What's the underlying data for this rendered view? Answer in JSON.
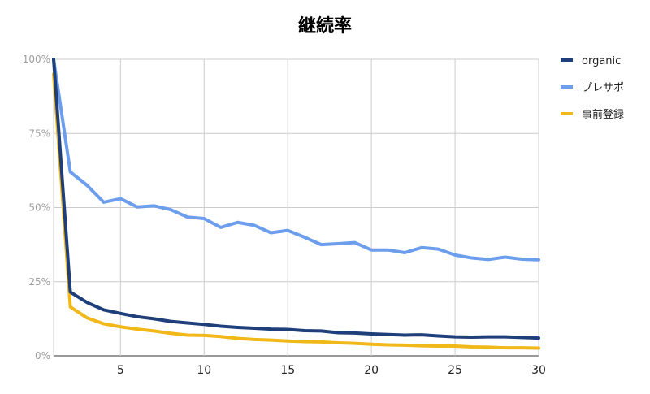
{
  "chart_data": {
    "type": "line",
    "title": "継続率",
    "xlabel": "",
    "ylabel": "",
    "xlim": [
      1,
      30
    ],
    "ylim": [
      0,
      100
    ],
    "x_ticks": [
      "5",
      "10",
      "15",
      "20",
      "25",
      "30"
    ],
    "y_ticks": [
      "0%",
      "25%",
      "50%",
      "75%",
      "100%"
    ],
    "grid": true,
    "legend_position": "right",
    "x": [
      1,
      2,
      3,
      4,
      5,
      6,
      7,
      8,
      9,
      10,
      11,
      12,
      13,
      14,
      15,
      16,
      17,
      18,
      19,
      20,
      21,
      22,
      23,
      24,
      25,
      26,
      27,
      28,
      29,
      30
    ],
    "series": [
      {
        "name": "organic",
        "color": "#1f3f7a",
        "values": [
          100,
          21.5,
          18,
          15.5,
          14.3,
          13.2,
          12.5,
          11.6,
          11.1,
          10.6,
          10,
          9.6,
          9.3,
          9,
          8.9,
          8.5,
          8.4,
          7.8,
          7.7,
          7.4,
          7.2,
          7,
          7.1,
          6.7,
          6.4,
          6.3,
          6.4,
          6.4,
          6.2,
          6
        ]
      },
      {
        "name": "プレサポ",
        "color": "#6d9eeb",
        "values": [
          100,
          62,
          57.5,
          51.8,
          53,
          50.2,
          50.6,
          49.3,
          46.8,
          46.3,
          43.3,
          45,
          44,
          41.5,
          42.3,
          40,
          37.5,
          37.8,
          38.2,
          35.7,
          35.7,
          34.8,
          36.5,
          36,
          34,
          33,
          32.5,
          33.3,
          32.6,
          32.4
        ]
      },
      {
        "name": "事前登録",
        "color": "#f1b81a",
        "values": [
          95,
          16.5,
          12.8,
          10.8,
          9.8,
          9,
          8.4,
          7.6,
          7,
          6.9,
          6.5,
          5.9,
          5.5,
          5.3,
          5,
          4.8,
          4.7,
          4.4,
          4.2,
          3.9,
          3.7,
          3.6,
          3.4,
          3.3,
          3.3,
          3,
          2.9,
          2.7,
          2.7,
          2.6
        ]
      }
    ]
  }
}
